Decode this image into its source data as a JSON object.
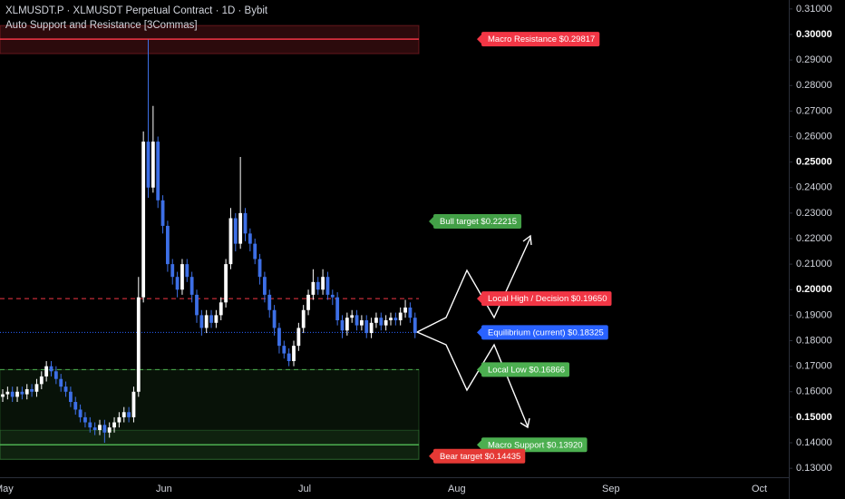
{
  "chart_data": {
    "type": "candlestick",
    "title": "XLMUSDT.P · XLMUSDT Perpetual Contract · 1D · Bybit",
    "subtitle": "Auto Support and Resistance [3Commas]",
    "up_color": "#ffffff",
    "down_color": "#3d6fe6",
    "ylim": [
      0.1265,
      0.3135
    ],
    "yticks": [
      {
        "value": 0.13,
        "label": "0.13000"
      },
      {
        "value": 0.14,
        "label": "0.14000"
      },
      {
        "value": 0.15,
        "label": "0.15000"
      },
      {
        "value": 0.16,
        "label": "0.16000"
      },
      {
        "value": 0.17,
        "label": "0.17000"
      },
      {
        "value": 0.18,
        "label": "0.18000"
      },
      {
        "value": 0.19,
        "label": "0.19000"
      },
      {
        "value": 0.2,
        "label": "0.20000"
      },
      {
        "value": 0.21,
        "label": "0.21000"
      },
      {
        "value": 0.22,
        "label": "0.22000"
      },
      {
        "value": 0.23,
        "label": "0.23000"
      },
      {
        "value": 0.24,
        "label": "0.24000"
      },
      {
        "value": 0.25,
        "label": "0.25000"
      },
      {
        "value": 0.26,
        "label": "0.26000"
      },
      {
        "value": 0.27,
        "label": "0.27000"
      },
      {
        "value": 0.28,
        "label": "0.28000"
      },
      {
        "value": 0.29,
        "label": "0.29000"
      },
      {
        "value": 0.3,
        "label": "0.30000"
      },
      {
        "value": 0.31,
        "label": "0.31000"
      }
    ],
    "xticks": [
      "May",
      "Jun",
      "Jul",
      "Aug",
      "Sep",
      "Oct"
    ],
    "open": [
      0.158,
      0.159,
      0.16,
      0.158,
      0.16,
      0.159,
      0.161,
      0.16,
      0.163,
      0.166,
      0.17,
      0.168,
      0.165,
      0.162,
      0.16,
      0.156,
      0.153,
      0.15,
      0.148,
      0.146,
      0.145,
      0.147,
      0.144,
      0.146,
      0.148,
      0.15,
      0.152,
      0.15,
      0.16,
      0.197,
      0.258,
      0.24,
      0.258,
      0.235,
      0.225,
      0.21,
      0.205,
      0.2,
      0.21,
      0.205,
      0.198,
      0.19,
      0.185,
      0.19,
      0.187,
      0.19,
      0.195,
      0.21,
      0.228,
      0.218,
      0.23,
      0.222,
      0.218,
      0.212,
      0.205,
      0.198,
      0.192,
      0.185,
      0.178,
      0.175,
      0.172,
      0.178,
      0.185,
      0.192,
      0.198,
      0.203,
      0.2,
      0.205,
      0.198,
      0.197,
      0.188,
      0.184,
      0.189,
      0.19,
      0.186,
      0.188,
      0.183,
      0.187,
      0.189,
      0.186,
      0.188,
      0.189,
      0.188,
      0.191,
      0.193,
      0.189
    ],
    "high": [
      0.161,
      0.162,
      0.162,
      0.162,
      0.162,
      0.163,
      0.163,
      0.165,
      0.168,
      0.172,
      0.172,
      0.17,
      0.167,
      0.164,
      0.162,
      0.158,
      0.155,
      0.152,
      0.15,
      0.148,
      0.149,
      0.149,
      0.148,
      0.15,
      0.152,
      0.154,
      0.154,
      0.162,
      0.205,
      0.262,
      0.298,
      0.272,
      0.26,
      0.237,
      0.227,
      0.212,
      0.207,
      0.212,
      0.212,
      0.207,
      0.2,
      0.192,
      0.192,
      0.192,
      0.192,
      0.197,
      0.212,
      0.232,
      0.23,
      0.252,
      0.232,
      0.224,
      0.22,
      0.214,
      0.207,
      0.2,
      0.194,
      0.187,
      0.18,
      0.177,
      0.18,
      0.187,
      0.194,
      0.2,
      0.208,
      0.205,
      0.208,
      0.207,
      0.2,
      0.199,
      0.19,
      0.191,
      0.192,
      0.192,
      0.19,
      0.19,
      0.189,
      0.191,
      0.191,
      0.19,
      0.191,
      0.191,
      0.193,
      0.196,
      0.195,
      0.191
    ],
    "low": [
      0.156,
      0.157,
      0.156,
      0.156,
      0.157,
      0.157,
      0.158,
      0.158,
      0.161,
      0.164,
      0.166,
      0.163,
      0.16,
      0.158,
      0.154,
      0.151,
      0.148,
      0.146,
      0.144,
      0.143,
      0.143,
      0.14,
      0.142,
      0.144,
      0.146,
      0.148,
      0.148,
      0.148,
      0.158,
      0.195,
      0.236,
      0.238,
      0.232,
      0.222,
      0.207,
      0.202,
      0.197,
      0.198,
      0.203,
      0.195,
      0.187,
      0.182,
      0.183,
      0.185,
      0.185,
      0.188,
      0.193,
      0.208,
      0.215,
      0.216,
      0.219,
      0.215,
      0.21,
      0.202,
      0.195,
      0.189,
      0.182,
      0.175,
      0.173,
      0.17,
      0.17,
      0.176,
      0.183,
      0.19,
      0.196,
      0.198,
      0.198,
      0.196,
      0.194,
      0.186,
      0.181,
      0.182,
      0.187,
      0.184,
      0.184,
      0.181,
      0.181,
      0.185,
      0.184,
      0.184,
      0.186,
      0.186,
      0.186,
      0.189,
      0.187,
      0.181
    ],
    "close": [
      0.159,
      0.16,
      0.158,
      0.16,
      0.159,
      0.161,
      0.16,
      0.163,
      0.166,
      0.17,
      0.168,
      0.165,
      0.162,
      0.16,
      0.156,
      0.153,
      0.15,
      0.148,
      0.146,
      0.145,
      0.147,
      0.144,
      0.146,
      0.148,
      0.15,
      0.152,
      0.15,
      0.16,
      0.197,
      0.258,
      0.24,
      0.258,
      0.235,
      0.225,
      0.21,
      0.205,
      0.2,
      0.21,
      0.205,
      0.198,
      0.19,
      0.185,
      0.19,
      0.187,
      0.19,
      0.195,
      0.21,
      0.228,
      0.218,
      0.23,
      0.222,
      0.218,
      0.212,
      0.205,
      0.198,
      0.192,
      0.185,
      0.178,
      0.175,
      0.172,
      0.178,
      0.185,
      0.192,
      0.198,
      0.203,
      0.2,
      0.205,
      0.198,
      0.197,
      0.188,
      0.184,
      0.189,
      0.19,
      0.186,
      0.188,
      0.183,
      0.187,
      0.189,
      0.186,
      0.188,
      0.189,
      0.188,
      0.191,
      0.193,
      0.189,
      0.183
    ],
    "levels": [
      {
        "label": "Macro Resistance $0.29817",
        "value": 0.29817,
        "color": "#f23645",
        "style": "solid"
      },
      {
        "label": "Local High / Decision $0.19650",
        "value": 0.1965,
        "color": "#f23645",
        "style": "dashed"
      },
      {
        "label": "Equilibrium (current) $0.18325",
        "value": 0.18325,
        "color": "#2962ff",
        "style": "dotted"
      },
      {
        "label": "Local Low $0.16866",
        "value": 0.16866,
        "color": "#4caf50",
        "style": "dashed"
      },
      {
        "label": "Macro Support $0.13920",
        "value": 0.1392,
        "color": "#4caf50",
        "style": "solid"
      }
    ],
    "targets": [
      {
        "label": "Bull target $0.22215",
        "value": 0.22215,
        "color": "#43a047"
      },
      {
        "label": "Bear target $0.14435",
        "value": 0.14435,
        "color": "#e53935"
      }
    ]
  }
}
